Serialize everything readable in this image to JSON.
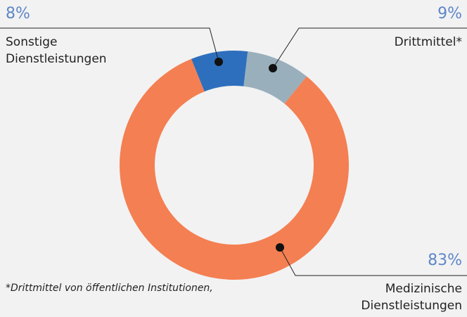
{
  "chart_data": {
    "type": "donut",
    "categories": [
      [
        "Sonstige",
        "Dienstleistungen"
      ],
      [
        "Drittmittel*"
      ],
      [
        "Medizinische",
        "Dienstleistungen"
      ]
    ],
    "values": [
      8,
      9,
      83
    ],
    "value_labels": [
      "8%",
      "9%",
      "83%"
    ],
    "colors": [
      "#2e6fbd",
      "#9aafbc",
      "#f47f52"
    ],
    "footnote": "*Drittmittel von öffentlichen Institutionen,"
  }
}
